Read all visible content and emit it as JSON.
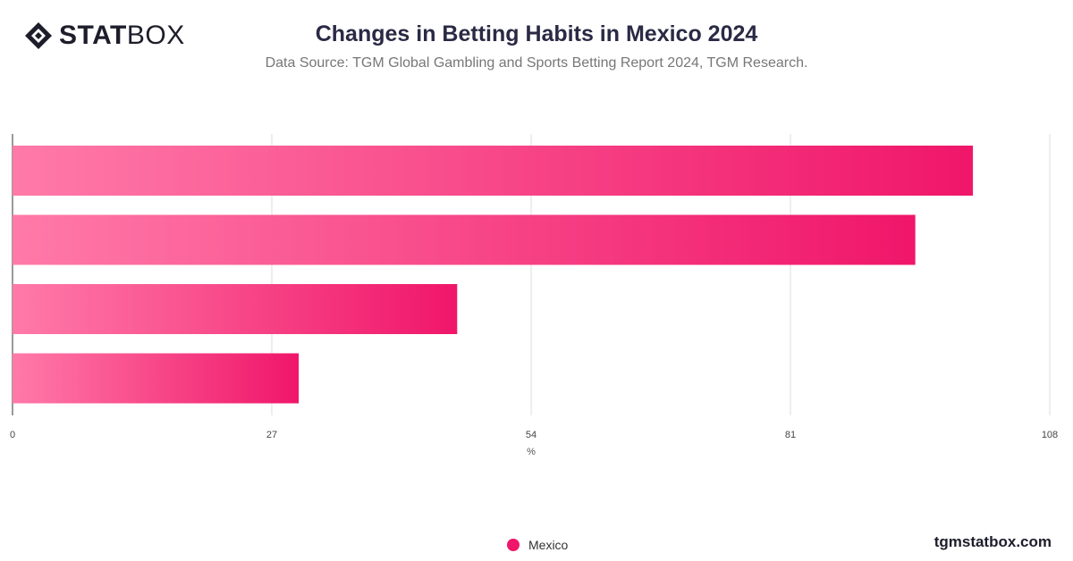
{
  "brand": {
    "logo_word_bold": "STAT",
    "logo_word_light": "BOX",
    "website": "tgmstatbox.com"
  },
  "title": "Changes in Betting Habits in Mexico 2024",
  "subtitle": "Data Source: TGM Global Gambling and Sports Betting Report 2024, TGM Research.",
  "colors": {
    "bar_start": "#ff7aa8",
    "bar_end": "#f0166a",
    "grid": "#dddddd",
    "axis": "#333333"
  },
  "chart_data": {
    "type": "bar",
    "orientation": "horizontal",
    "categories": [
      "",
      "",
      "",
      ""
    ],
    "series": [
      {
        "name": "Mexico",
        "values": [
          100,
          94,
          46.3,
          29.8
        ]
      }
    ],
    "xlabel": "%",
    "xlim": [
      0,
      108
    ],
    "xticks": [
      "0",
      "27",
      "54",
      "81",
      "108"
    ],
    "grid": true,
    "legend": "bottom-center"
  }
}
